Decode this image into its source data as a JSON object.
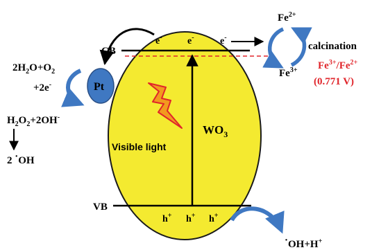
{
  "labels": {
    "cb": "CB",
    "vb": "VB",
    "pt": "Pt",
    "wo3": "WO",
    "wo3_sub": "3",
    "visible_light": "Visible light",
    "calcination": "calcination",
    "fe_potential": "(0.771 V)",
    "electron": "e",
    "electron_sup": "-",
    "hole": "h",
    "hole_sup": "+"
  },
  "fe_top": {
    "base": "Fe",
    "sup": "2+"
  },
  "fe_bottom": {
    "base": "Fe",
    "sup": "3+"
  },
  "fe_couple": {
    "a": "Fe",
    "a_sup": "3+",
    "sep": "/Fe",
    "b_sup": "2+"
  },
  "left_reaction": {
    "r1_a": "2H",
    "r1_a_sub": "2",
    "r1_b": "O+O",
    "r1_b_sub": "2",
    "r2": "+2e",
    "r2_sup": "-",
    "p1_a": "H",
    "p1_a_sub": "2",
    "p1_b": "O",
    "p1_b_sub": "2",
    "p1_c": "+2OH",
    "p1_c_sup": "-",
    "p2_a": "2 ",
    "p2_dot": "·",
    "p2_b": "OH"
  },
  "right_product": {
    "dot": "·",
    "a": "OH+H",
    "sup": "+"
  },
  "colors": {
    "semiconductor": "#f4ea30",
    "pt_particle": "#3f78c2",
    "arrow_blue": "#3f78c2",
    "fermi_line": "#e0252b",
    "text_red": "#e0252b",
    "lightning_fill": "#f29a1e",
    "lightning_stroke": "#e0252b"
  },
  "icons": {
    "light": "lightning-bolt-icon",
    "cycle": "circular-arrows-icon"
  }
}
